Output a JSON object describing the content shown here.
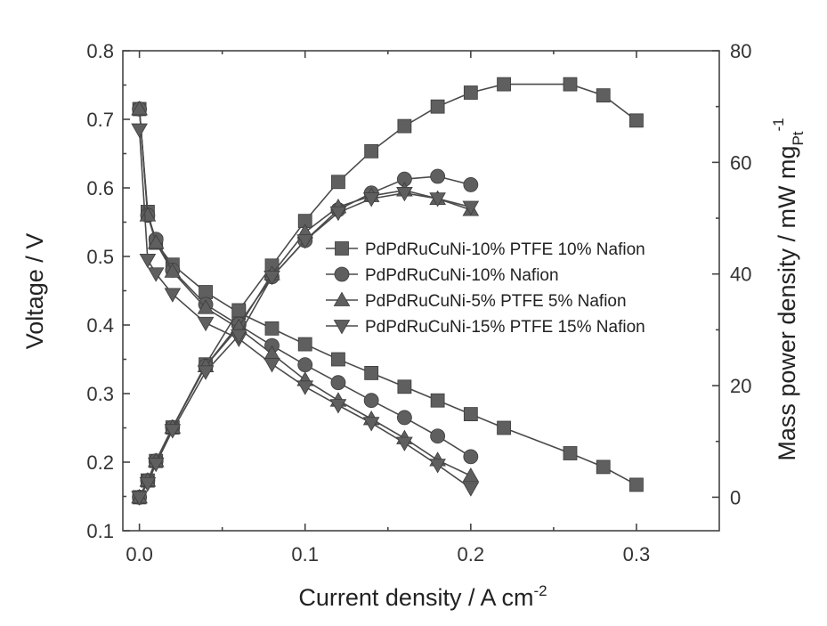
{
  "chart_data": {
    "type": "line",
    "x_axis": {
      "label": "Current density / A cm",
      "label_sup": "-2",
      "range": [
        -0.01,
        0.35
      ],
      "ticks": [
        0.0,
        0.1,
        0.2,
        0.3
      ],
      "tick_labels": [
        "0.0",
        "0.1",
        "0.2",
        "0.3"
      ]
    },
    "y_axis_left": {
      "label": "Voltage / V",
      "range": [
        0.1,
        0.8
      ],
      "ticks": [
        0.1,
        0.2,
        0.3,
        0.4,
        0.5,
        0.6,
        0.7,
        0.8
      ],
      "tick_labels": [
        "0.1",
        "0.2",
        "0.3",
        "0.4",
        "0.5",
        "0.6",
        "0.7",
        "0.8"
      ]
    },
    "y_axis_right": {
      "label": "Mass power density / mW  mg",
      "label_sub": "Pt",
      "label_sup": "-1",
      "range": [
        -6,
        80
      ],
      "ticks": [
        0,
        20,
        40,
        60,
        80
      ],
      "tick_labels": [
        "0",
        "20",
        "40",
        "60",
        "80"
      ]
    },
    "legend_position": "center-right",
    "grid": false,
    "series": [
      {
        "name": "PdPdRuCuNi-10% PTFE 10% Nafion",
        "marker": "square",
        "x": [
          0.0,
          0.005,
          0.01,
          0.02,
          0.04,
          0.06,
          0.08,
          0.1,
          0.12,
          0.14,
          0.16,
          0.18,
          0.2,
          0.22,
          0.26,
          0.28,
          0.3
        ],
        "voltage": [
          0.715,
          0.565,
          0.52,
          0.488,
          0.448,
          0.418,
          0.395,
          0.372,
          0.35,
          0.33,
          0.31,
          0.29,
          0.27,
          0.25,
          0.213,
          0.193,
          0.167
        ],
        "power": [
          0.0,
          3.0,
          6.5,
          12.5,
          23.8,
          33.5,
          41.5,
          49.5,
          56.5,
          62.0,
          66.5,
          70.0,
          72.5,
          74.0,
          74.0,
          72.0,
          67.5
        ]
      },
      {
        "name": "PdPdRuCuNi-10% Nafion",
        "marker": "circle",
        "x": [
          0.0,
          0.005,
          0.01,
          0.02,
          0.04,
          0.06,
          0.08,
          0.1,
          0.12,
          0.14,
          0.16,
          0.18,
          0.2
        ],
        "voltage": [
          0.715,
          0.56,
          0.525,
          0.48,
          0.43,
          0.4,
          0.37,
          0.342,
          0.316,
          0.29,
          0.265,
          0.238,
          0.208
        ],
        "power": [
          0.0,
          3.0,
          6.5,
          12.5,
          23.5,
          31.0,
          39.5,
          46.0,
          51.5,
          54.5,
          57.0,
          57.5,
          56.0
        ]
      },
      {
        "name": "PdPdRuCuNi-5% PTFE 5% Nafion",
        "marker": "triangle-up",
        "x": [
          0.0,
          0.005,
          0.01,
          0.02,
          0.04,
          0.06,
          0.08,
          0.1,
          0.12,
          0.14,
          0.16,
          0.18,
          0.2
        ],
        "voltage": [
          0.715,
          0.56,
          0.52,
          0.478,
          0.425,
          0.395,
          0.358,
          0.32,
          0.29,
          0.263,
          0.235,
          0.203,
          0.18
        ],
        "power": [
          0.0,
          3.0,
          6.5,
          12.5,
          23.5,
          30.5,
          40.0,
          47.5,
          52.0,
          54.0,
          55.0,
          53.5,
          51.5
        ]
      },
      {
        "name": "PdPdRuCuNi-15% PTFE 15% Nafion",
        "marker": "triangle-down",
        "x": [
          0.0,
          0.005,
          0.01,
          0.02,
          0.04,
          0.06,
          0.08,
          0.1,
          0.12,
          0.14,
          0.16,
          0.18,
          0.2
        ],
        "voltage": [
          0.685,
          0.495,
          0.475,
          0.445,
          0.403,
          0.38,
          0.343,
          0.31,
          0.283,
          0.257,
          0.228,
          0.196,
          0.162
        ],
        "power": [
          0.0,
          2.5,
          6.0,
          12.0,
          22.5,
          29.0,
          39.5,
          46.0,
          51.0,
          53.5,
          54.5,
          53.5,
          52.0
        ]
      }
    ]
  }
}
